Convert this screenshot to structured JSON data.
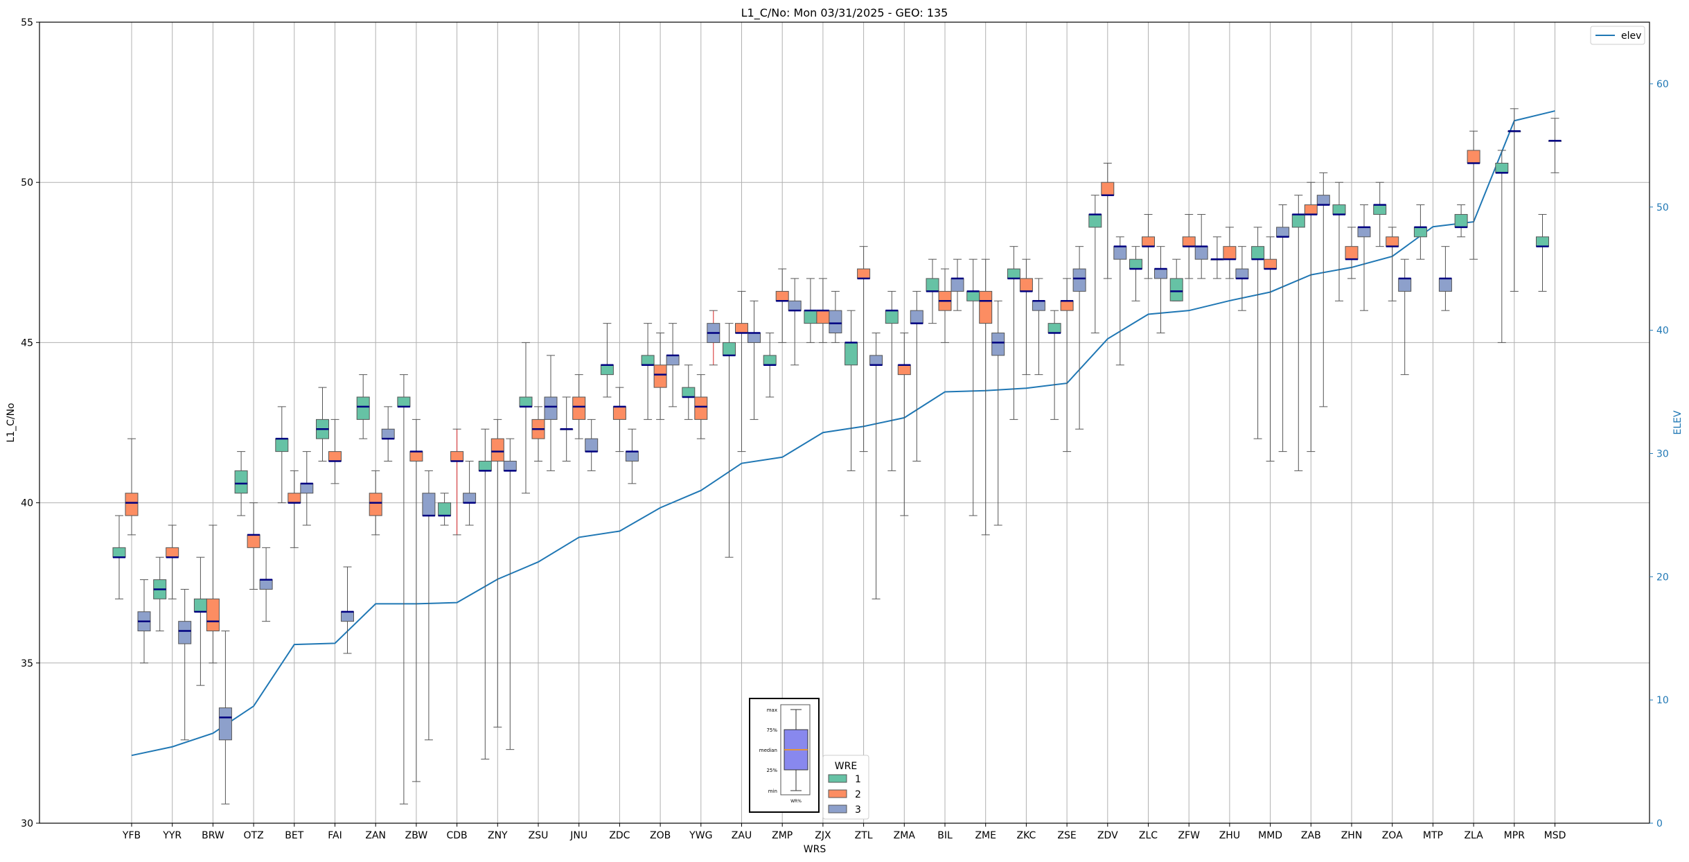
{
  "chart_data": {
    "type": "box",
    "title": "L1_C/No: Mon 03/31/2025 - GEO: 135",
    "xlabel": "WRS",
    "ylabel": "L1_C/No",
    "y2label": "ELEV",
    "ylim": [
      30,
      55
    ],
    "y2lim": [
      0,
      65
    ],
    "yticks": [
      30,
      35,
      40,
      45,
      50,
      55
    ],
    "y2ticks": [
      0,
      10,
      20,
      30,
      40,
      50,
      60
    ],
    "grid": true,
    "colors": {
      "wre1": "#66c2a5",
      "wre2": "#fc8d62",
      "wre3": "#8da0cb",
      "median": "#000080",
      "elev": "#1f77b4",
      "whisker": "#555555",
      "red_whisker": "#d62728"
    },
    "categories": [
      "YFB",
      "YYR",
      "BRW",
      "OTZ",
      "BET",
      "FAI",
      "ZAN",
      "ZBW",
      "CDB",
      "ZNY",
      "ZSU",
      "JNU",
      "ZDC",
      "ZOB",
      "YWG",
      "ZAU",
      "ZMP",
      "ZJX",
      "ZTL",
      "ZMA",
      "BIL",
      "ZME",
      "ZKC",
      "ZSE",
      "ZDV",
      "ZLC",
      "ZFW",
      "ZHU",
      "MMD",
      "ZAB",
      "ZHN",
      "ZOA",
      "MTP",
      "ZLA",
      "MPR",
      "MSD"
    ],
    "legend": {
      "title": "WRE",
      "entries": [
        "1",
        "2",
        "3"
      ],
      "placement": "lower-center"
    },
    "line_legend": {
      "label": "elev",
      "placement": "upper-right"
    },
    "inset": {
      "labels": [
        "max",
        "75%",
        "median",
        "25%",
        "min"
      ],
      "caption": "WR%"
    },
    "series": [
      {
        "name": "1",
        "boxes": [
          {
            "cat": 0,
            "min": 37.0,
            "q1": 38.3,
            "med": 38.3,
            "q3": 38.6,
            "max": 39.6
          },
          {
            "cat": 1,
            "min": 36.0,
            "q1": 37.0,
            "med": 37.3,
            "q3": 37.6,
            "max": 38.3
          },
          {
            "cat": 2,
            "min": 34.3,
            "q1": 36.6,
            "med": 36.6,
            "q3": 37.0,
            "max": 38.3
          },
          {
            "cat": 3,
            "min": 39.6,
            "q1": 40.3,
            "med": 40.6,
            "q3": 41.0,
            "max": 41.6
          },
          {
            "cat": 4,
            "min": 40.0,
            "q1": 41.6,
            "med": 42.0,
            "q3": 42.0,
            "max": 43.0
          },
          {
            "cat": 5,
            "min": 41.3,
            "q1": 42.0,
            "med": 42.3,
            "q3": 42.6,
            "max": 43.6
          },
          {
            "cat": 6,
            "min": 42.0,
            "q1": 42.6,
            "med": 43.0,
            "q3": 43.3,
            "max": 44.0
          },
          {
            "cat": 7,
            "min": 30.6,
            "q1": 43.0,
            "med": 43.0,
            "q3": 43.3,
            "max": 44.0
          },
          {
            "cat": 8,
            "min": 39.3,
            "q1": 39.6,
            "med": 39.6,
            "q3": 40.0,
            "max": 40.3
          },
          {
            "cat": 9,
            "min": 32.0,
            "q1": 41.0,
            "med": 41.0,
            "q3": 41.3,
            "max": 42.3
          },
          {
            "cat": 10,
            "min": 40.3,
            "q1": 43.0,
            "med": 43.0,
            "q3": 43.3,
            "max": 45.0
          },
          {
            "cat": 11,
            "min": 41.3,
            "q1": 42.3,
            "med": 42.3,
            "q3": 42.3,
            "max": 43.3
          },
          {
            "cat": 12,
            "min": 43.3,
            "q1": 44.0,
            "med": 44.3,
            "q3": 44.3,
            "max": 45.6
          },
          {
            "cat": 13,
            "min": 42.6,
            "q1": 44.3,
            "med": 44.3,
            "q3": 44.6,
            "max": 45.6
          },
          {
            "cat": 14,
            "min": 42.6,
            "q1": 43.3,
            "med": 43.3,
            "q3": 43.6,
            "max": 44.3
          },
          {
            "cat": 15,
            "min": 38.3,
            "q1": 44.6,
            "med": 44.6,
            "q3": 45.0,
            "max": 45.6
          },
          {
            "cat": 16,
            "min": 43.3,
            "q1": 44.3,
            "med": 44.3,
            "q3": 44.6,
            "max": 45.3
          },
          {
            "cat": 17,
            "min": 45.0,
            "q1": 45.6,
            "med": 46.0,
            "q3": 46.0,
            "max": 47.0
          },
          {
            "cat": 18,
            "min": 41.0,
            "q1": 44.3,
            "med": 45.0,
            "q3": 45.0,
            "max": 46.0
          },
          {
            "cat": 19,
            "min": 41.0,
            "q1": 45.6,
            "med": 46.0,
            "q3": 46.0,
            "max": 46.6
          },
          {
            "cat": 20,
            "min": 45.6,
            "q1": 46.6,
            "med": 46.6,
            "q3": 47.0,
            "max": 47.6
          },
          {
            "cat": 21,
            "min": 39.6,
            "q1": 46.3,
            "med": 46.6,
            "q3": 46.6,
            "max": 47.6
          },
          {
            "cat": 22,
            "min": 42.6,
            "q1": 47.0,
            "med": 47.0,
            "q3": 47.3,
            "max": 48.0
          },
          {
            "cat": 23,
            "min": 42.6,
            "q1": 45.3,
            "med": 45.3,
            "q3": 45.6,
            "max": 46.0
          },
          {
            "cat": 24,
            "min": 45.3,
            "q1": 48.6,
            "med": 49.0,
            "q3": 49.0,
            "max": 49.6
          },
          {
            "cat": 25,
            "min": 46.3,
            "q1": 47.3,
            "med": 47.3,
            "q3": 47.6,
            "max": 48.0
          },
          {
            "cat": 26,
            "min": 46.3,
            "q1": 46.3,
            "med": 46.6,
            "q3": 47.0,
            "max": 47.6
          },
          {
            "cat": 27,
            "min": 47.0,
            "q1": 47.6,
            "med": 47.6,
            "q3": 47.6,
            "max": 48.3
          },
          {
            "cat": 28,
            "min": 42.0,
            "q1": 47.6,
            "med": 47.6,
            "q3": 48.0,
            "max": 48.6
          },
          {
            "cat": 29,
            "min": 41.0,
            "q1": 48.6,
            "med": 49.0,
            "q3": 49.0,
            "max": 49.6
          },
          {
            "cat": 30,
            "min": 46.3,
            "q1": 49.0,
            "med": 49.0,
            "q3": 49.3,
            "max": 50.0
          },
          {
            "cat": 31,
            "min": 48.0,
            "q1": 49.0,
            "med": 49.3,
            "q3": 49.3,
            "max": 50.0
          },
          {
            "cat": 32,
            "min": 47.6,
            "q1": 48.3,
            "med": 48.6,
            "q3": 48.6,
            "max": 49.3
          },
          {
            "cat": 33,
            "min": 48.3,
            "q1": 48.6,
            "med": 48.6,
            "q3": 49.0,
            "max": 49.3
          },
          {
            "cat": 34,
            "min": 45.0,
            "q1": 50.3,
            "med": 50.3,
            "q3": 50.6,
            "max": 51.0
          },
          {
            "cat": 35,
            "min": 46.6,
            "q1": 48.0,
            "med": 48.0,
            "q3": 48.3,
            "max": 49.0
          }
        ]
      },
      {
        "name": "2",
        "boxes": [
          {
            "cat": 0,
            "min": 39.0,
            "q1": 39.6,
            "med": 40.0,
            "q3": 40.3,
            "max": 42.0
          },
          {
            "cat": 1,
            "min": 37.0,
            "q1": 38.3,
            "med": 38.3,
            "q3": 38.6,
            "max": 39.3
          },
          {
            "cat": 2,
            "min": 35.0,
            "q1": 36.0,
            "med": 36.3,
            "q3": 37.0,
            "max": 39.3
          },
          {
            "cat": 3,
            "min": 37.3,
            "q1": 38.6,
            "med": 39.0,
            "q3": 39.0,
            "max": 40.0
          },
          {
            "cat": 4,
            "min": 38.6,
            "q1": 40.0,
            "med": 40.0,
            "q3": 40.3,
            "max": 41.0
          },
          {
            "cat": 5,
            "min": 40.6,
            "q1": 41.3,
            "med": 41.3,
            "q3": 41.6,
            "max": 42.6
          },
          {
            "cat": 6,
            "min": 39.0,
            "q1": 39.6,
            "med": 40.0,
            "q3": 40.3,
            "max": 41.0
          },
          {
            "cat": 7,
            "min": 31.3,
            "q1": 41.3,
            "med": 41.6,
            "q3": 41.6,
            "max": 42.6
          },
          {
            "cat": 8,
            "min": 39.0,
            "q1": 41.3,
            "med": 41.3,
            "q3": 41.6,
            "max": 42.3,
            "red": true
          },
          {
            "cat": 9,
            "min": 33.0,
            "q1": 41.3,
            "med": 41.6,
            "q3": 42.0,
            "max": 42.6
          },
          {
            "cat": 10,
            "min": 41.3,
            "q1": 42.0,
            "med": 42.3,
            "q3": 42.6,
            "max": 43.0
          },
          {
            "cat": 11,
            "min": 42.0,
            "q1": 42.6,
            "med": 43.0,
            "q3": 43.3,
            "max": 44.0
          },
          {
            "cat": 12,
            "min": 41.6,
            "q1": 42.6,
            "med": 43.0,
            "q3": 43.0,
            "max": 43.6
          },
          {
            "cat": 13,
            "min": 42.6,
            "q1": 43.6,
            "med": 44.0,
            "q3": 44.3,
            "max": 45.3
          },
          {
            "cat": 14,
            "min": 42.0,
            "q1": 42.6,
            "med": 43.0,
            "q3": 43.3,
            "max": 44.0
          },
          {
            "cat": 15,
            "min": 41.6,
            "q1": 45.3,
            "med": 45.3,
            "q3": 45.6,
            "max": 46.6
          },
          {
            "cat": 16,
            "min": 45.0,
            "q1": 46.3,
            "med": 46.3,
            "q3": 46.6,
            "max": 47.3
          },
          {
            "cat": 17,
            "min": 45.0,
            "q1": 45.6,
            "med": 46.0,
            "q3": 46.0,
            "max": 47.0
          },
          {
            "cat": 18,
            "min": 41.6,
            "q1": 47.0,
            "med": 47.0,
            "q3": 47.3,
            "max": 48.0
          },
          {
            "cat": 19,
            "min": 39.6,
            "q1": 44.0,
            "med": 44.3,
            "q3": 44.3,
            "max": 45.3
          },
          {
            "cat": 20,
            "min": 45.0,
            "q1": 46.0,
            "med": 46.3,
            "q3": 46.6,
            "max": 47.3
          },
          {
            "cat": 21,
            "min": 39.0,
            "q1": 45.6,
            "med": 46.3,
            "q3": 46.6,
            "max": 47.6
          },
          {
            "cat": 22,
            "min": 44.0,
            "q1": 46.6,
            "med": 46.6,
            "q3": 47.0,
            "max": 47.6
          },
          {
            "cat": 23,
            "min": 41.6,
            "q1": 46.0,
            "med": 46.3,
            "q3": 46.3,
            "max": 47.0
          },
          {
            "cat": 24,
            "min": 47.0,
            "q1": 49.6,
            "med": 49.6,
            "q3": 50.0,
            "max": 50.6
          },
          {
            "cat": 25,
            "min": 47.0,
            "q1": 48.0,
            "med": 48.0,
            "q3": 48.3,
            "max": 49.0
          },
          {
            "cat": 26,
            "min": 47.0,
            "q1": 48.0,
            "med": 48.0,
            "q3": 48.3,
            "max": 49.0
          },
          {
            "cat": 27,
            "min": 47.0,
            "q1": 47.6,
            "med": 47.6,
            "q3": 48.0,
            "max": 48.6
          },
          {
            "cat": 28,
            "min": 41.3,
            "q1": 47.3,
            "med": 47.3,
            "q3": 47.6,
            "max": 48.3
          },
          {
            "cat": 29,
            "min": 41.6,
            "q1": 49.0,
            "med": 49.0,
            "q3": 49.3,
            "max": 50.0
          },
          {
            "cat": 30,
            "min": 47.0,
            "q1": 47.6,
            "med": 47.6,
            "q3": 48.0,
            "max": 48.6
          },
          {
            "cat": 31,
            "min": 46.3,
            "q1": 48.0,
            "med": 48.0,
            "q3": 48.3,
            "max": 48.6
          },
          {
            "cat": 33,
            "min": 47.6,
            "q1": 50.6,
            "med": 50.6,
            "q3": 51.0,
            "max": 51.6
          },
          {
            "cat": 34,
            "min": 46.6,
            "q1": 51.6,
            "med": 51.6,
            "q3": 51.6,
            "max": 52.3
          },
          {
            "cat": 35,
            "min": 50.3,
            "q1": 51.3,
            "med": 51.3,
            "q3": 51.3,
            "max": 52.0
          }
        ]
      },
      {
        "name": "3",
        "boxes": [
          {
            "cat": 0,
            "min": 35.0,
            "q1": 36.0,
            "med": 36.3,
            "q3": 36.6,
            "max": 37.6
          },
          {
            "cat": 1,
            "min": 32.6,
            "q1": 35.6,
            "med": 36.0,
            "q3": 36.3,
            "max": 37.3
          },
          {
            "cat": 2,
            "min": 30.6,
            "q1": 32.6,
            "med": 33.3,
            "q3": 33.6,
            "max": 36.0
          },
          {
            "cat": 3,
            "min": 36.3,
            "q1": 37.3,
            "med": 37.6,
            "q3": 37.6,
            "max": 38.6
          },
          {
            "cat": 4,
            "min": 39.3,
            "q1": 40.3,
            "med": 40.6,
            "q3": 40.6,
            "max": 41.6
          },
          {
            "cat": 5,
            "min": 35.3,
            "q1": 36.3,
            "med": 36.6,
            "q3": 36.6,
            "max": 38.0
          },
          {
            "cat": 6,
            "min": 41.3,
            "q1": 42.0,
            "med": 42.0,
            "q3": 42.3,
            "max": 43.0
          },
          {
            "cat": 7,
            "min": 32.6,
            "q1": 39.6,
            "med": 39.6,
            "q3": 40.3,
            "max": 41.0
          },
          {
            "cat": 8,
            "min": 39.3,
            "q1": 40.0,
            "med": 40.0,
            "q3": 40.3,
            "max": 41.3
          },
          {
            "cat": 9,
            "min": 32.3,
            "q1": 41.0,
            "med": 41.0,
            "q3": 41.3,
            "max": 42.0
          },
          {
            "cat": 10,
            "min": 41.0,
            "q1": 42.6,
            "med": 43.0,
            "q3": 43.3,
            "max": 44.6
          },
          {
            "cat": 11,
            "min": 41.0,
            "q1": 41.6,
            "med": 41.6,
            "q3": 42.0,
            "max": 42.6
          },
          {
            "cat": 12,
            "min": 40.6,
            "q1": 41.3,
            "med": 41.6,
            "q3": 41.6,
            "max": 42.3
          },
          {
            "cat": 13,
            "min": 43.0,
            "q1": 44.3,
            "med": 44.6,
            "q3": 44.6,
            "max": 45.6
          },
          {
            "cat": 14,
            "min": 44.3,
            "q1": 45.0,
            "med": 45.3,
            "q3": 45.6,
            "max": 46.0,
            "red": true
          },
          {
            "cat": 15,
            "min": 42.6,
            "q1": 45.0,
            "med": 45.3,
            "q3": 45.3,
            "max": 46.3
          },
          {
            "cat": 16,
            "min": 44.3,
            "q1": 46.0,
            "med": 46.0,
            "q3": 46.3,
            "max": 47.0
          },
          {
            "cat": 17,
            "min": 45.0,
            "q1": 45.3,
            "med": 45.6,
            "q3": 46.0,
            "max": 46.6
          },
          {
            "cat": 18,
            "min": 37.0,
            "q1": 44.3,
            "med": 44.3,
            "q3": 44.6,
            "max": 45.3
          },
          {
            "cat": 19,
            "min": 41.3,
            "q1": 45.6,
            "med": 45.6,
            "q3": 46.0,
            "max": 46.6
          },
          {
            "cat": 20,
            "min": 46.0,
            "q1": 46.6,
            "med": 47.0,
            "q3": 47.0,
            "max": 47.6
          },
          {
            "cat": 21,
            "min": 39.3,
            "q1": 44.6,
            "med": 45.0,
            "q3": 45.3,
            "max": 46.3
          },
          {
            "cat": 22,
            "min": 44.0,
            "q1": 46.0,
            "med": 46.3,
            "q3": 46.3,
            "max": 47.0
          },
          {
            "cat": 23,
            "min": 42.3,
            "q1": 46.6,
            "med": 47.0,
            "q3": 47.3,
            "max": 48.0
          },
          {
            "cat": 24,
            "min": 44.3,
            "q1": 47.6,
            "med": 48.0,
            "q3": 48.0,
            "max": 48.3
          },
          {
            "cat": 25,
            "min": 45.3,
            "q1": 47.0,
            "med": 47.3,
            "q3": 47.3,
            "max": 48.0
          },
          {
            "cat": 26,
            "min": 47.0,
            "q1": 47.6,
            "med": 48.0,
            "q3": 48.0,
            "max": 49.0
          },
          {
            "cat": 27,
            "min": 46.0,
            "q1": 47.0,
            "med": 47.0,
            "q3": 47.3,
            "max": 48.0
          },
          {
            "cat": 28,
            "min": 41.6,
            "q1": 48.3,
            "med": 48.3,
            "q3": 48.6,
            "max": 49.3
          },
          {
            "cat": 29,
            "min": 43.0,
            "q1": 49.3,
            "med": 49.3,
            "q3": 49.6,
            "max": 50.3
          },
          {
            "cat": 30,
            "min": 46.0,
            "q1": 48.3,
            "med": 48.6,
            "q3": 48.6,
            "max": 49.3
          },
          {
            "cat": 31,
            "min": 44.0,
            "q1": 46.6,
            "med": 47.0,
            "q3": 47.0,
            "max": 47.6
          },
          {
            "cat": 32,
            "min": 46.0,
            "q1": 46.6,
            "med": 47.0,
            "q3": 47.0,
            "max": 48.0
          }
        ]
      }
    ],
    "elev": [
      5.5,
      6.2,
      7.3,
      9.5,
      14.5,
      14.6,
      17.8,
      17.8,
      17.9,
      19.8,
      21.2,
      23.2,
      23.7,
      25.6,
      27.0,
      29.2,
      29.7,
      31.7,
      32.2,
      32.9,
      35.0,
      35.1,
      35.3,
      35.7,
      39.3,
      41.3,
      41.6,
      42.4,
      43.1,
      44.5,
      45.1,
      46.0,
      48.4,
      48.8,
      57.0,
      57.8
    ]
  }
}
